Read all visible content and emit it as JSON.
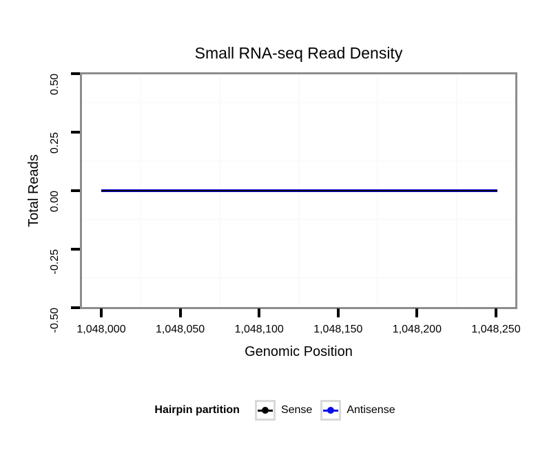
{
  "chart_data": {
    "type": "line",
    "title": "Small RNA-seq Read Density",
    "xlabel": "Genomic Position",
    "ylabel": "Total Reads",
    "xlim": [
      1047987,
      1048262
    ],
    "ylim": [
      -0.5,
      0.5
    ],
    "x_ticks": {
      "values": [
        1048000,
        1048050,
        1048100,
        1048150,
        1048200,
        1048250
      ],
      "labels": [
        "1,048,000",
        "1,048,050",
        "1,048,100",
        "1,048,150",
        "1,048,200",
        "1,048,250"
      ]
    },
    "y_ticks": {
      "values": [
        0.5,
        0.25,
        0,
        -0.25,
        -0.5
      ],
      "labels": [
        "0.50",
        "0.25",
        "0.00",
        "-0.25",
        "-0.50"
      ]
    },
    "x_minor_gridlines": [
      1048025,
      1048075,
      1048125,
      1048175,
      1048225
    ],
    "y_minor_gridlines": [
      0.375,
      0.125,
      -0.125,
      -0.375
    ],
    "grid": "minor-only",
    "legend": {
      "title": "Hairpin partition",
      "position": "bottom",
      "entries": [
        "Sense",
        "Antisense"
      ]
    },
    "series": [
      {
        "name": "Sense",
        "color": "#000000",
        "x": [
          1048000,
          1048251
        ],
        "y": [
          0,
          0
        ]
      },
      {
        "name": "Antisense",
        "color": "#0b0bee",
        "x": [
          1048000,
          1048251
        ],
        "y": [
          0,
          0
        ]
      }
    ],
    "colors": {
      "panel_border": "#8c8c8c",
      "gridline": "#fafafa",
      "tick": "#000000",
      "text": "#000000",
      "legend_key_border": "#d9d9d9",
      "background": "#ffffff"
    }
  }
}
